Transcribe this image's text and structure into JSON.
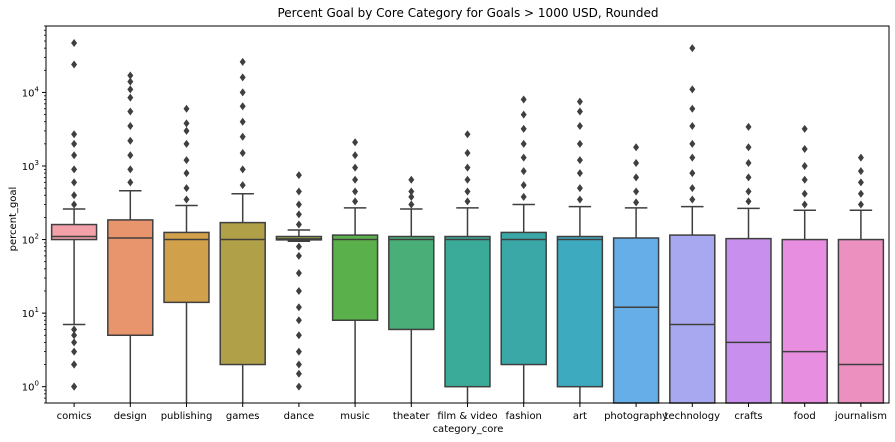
{
  "chart_data": {
    "type": "boxplot",
    "title": "Percent Goal by Core Category for Goals > 1000 USD, Rounded",
    "xlabel": "category_core",
    "ylabel": "percent_goal",
    "yscale": "log",
    "ylim": [
      0.6,
      80000
    ],
    "yticks": [
      {
        "value": 1,
        "base": "10",
        "exp": "0"
      },
      {
        "value": 10,
        "base": "10",
        "exp": "1"
      },
      {
        "value": 100,
        "base": "10",
        "exp": "2"
      },
      {
        "value": 1000,
        "base": "10",
        "exp": "3"
      },
      {
        "value": 10000,
        "base": "10",
        "exp": "4"
      }
    ],
    "grid": false,
    "series": [
      {
        "category": "comics",
        "color": "#f4a0a8",
        "q1": 100,
        "median": 110,
        "q3": 160,
        "whisker_low": 7,
        "whisker_high": 260,
        "outliers_low": [
          1,
          1,
          2,
          2,
          3,
          4,
          5,
          6
        ],
        "outliers_high": [
          300,
          400,
          600,
          900,
          1400,
          2000,
          2700,
          24000,
          47000
        ]
      },
      {
        "category": "design",
        "color": "#e8956e",
        "q1": 5,
        "median": 105,
        "q3": 185,
        "whisker_low": 0.6,
        "whisker_high": 460,
        "outliers_low": [],
        "outliers_high": [
          600,
          900,
          1400,
          2200,
          3500,
          5500,
          8500,
          11000,
          14000,
          17000
        ]
      },
      {
        "category": "publishing",
        "color": "#d0a04a",
        "q1": 14,
        "median": 100,
        "q3": 125,
        "whisker_low": 0.6,
        "whisker_high": 290,
        "outliers_low": [],
        "outliers_high": [
          350,
          500,
          800,
          1200,
          2000,
          3000,
          3800,
          6000
        ]
      },
      {
        "category": "games",
        "color": "#b0a048",
        "q1": 2,
        "median": 100,
        "q3": 170,
        "whisker_low": 0.6,
        "whisker_high": 420,
        "outliers_low": [],
        "outliers_high": [
          550,
          900,
          1500,
          2500,
          4000,
          6500,
          10000,
          16000,
          26000
        ]
      },
      {
        "category": "dance",
        "color": "#95a84a",
        "q1": 99,
        "median": 102,
        "q3": 110,
        "whisker_low": 95,
        "whisker_high": 135,
        "outliers_low": [
          1,
          1.5,
          2,
          3,
          5,
          8,
          12,
          20,
          35,
          60,
          80
        ],
        "outliers_high": [
          160,
          220,
          300,
          450,
          750
        ]
      },
      {
        "category": "music",
        "color": "#5ab04a",
        "q1": 8,
        "median": 100,
        "q3": 115,
        "whisker_low": 0.6,
        "whisker_high": 270,
        "outliers_low": [],
        "outliers_high": [
          330,
          450,
          650,
          950,
          1400,
          2100
        ]
      },
      {
        "category": "theater",
        "color": "#4aae78",
        "q1": 6,
        "median": 100,
        "q3": 110,
        "whisker_low": 0.6,
        "whisker_high": 260,
        "outliers_low": [],
        "outliers_high": [
          300,
          380,
          450,
          650
        ]
      },
      {
        "category": "film & video",
        "color": "#3aab98",
        "q1": 1,
        "median": 100,
        "q3": 110,
        "whisker_low": 0.6,
        "whisker_high": 270,
        "outliers_low": [],
        "outliers_high": [
          330,
          450,
          650,
          950,
          1500,
          2700
        ]
      },
      {
        "category": "fashion",
        "color": "#3ba8a8",
        "q1": 2,
        "median": 100,
        "q3": 125,
        "whisker_low": 0.6,
        "whisker_high": 300,
        "outliers_low": [],
        "outliers_high": [
          380,
          550,
          850,
          1300,
          2000,
          3200,
          5000,
          8000
        ]
      },
      {
        "category": "art",
        "color": "#3eaac0",
        "q1": 1,
        "median": 100,
        "q3": 110,
        "whisker_low": 0.6,
        "whisker_high": 280,
        "outliers_low": [],
        "outliers_high": [
          350,
          500,
          800,
          1200,
          2000,
          3500,
          5500,
          7500
        ]
      },
      {
        "category": "photography",
        "color": "#66aee8",
        "q1": 0.6,
        "median": 12,
        "q3": 105,
        "whisker_low": 0.6,
        "whisker_high": 270,
        "outliers_low": [],
        "outliers_high": [
          320,
          450,
          700,
          1100,
          1800
        ]
      },
      {
        "category": "technology",
        "color": "#a8a8f0",
        "q1": 0.6,
        "median": 7,
        "q3": 115,
        "whisker_low": 0.6,
        "whisker_high": 280,
        "outliers_low": [],
        "outliers_high": [
          350,
          500,
          800,
          1300,
          2000,
          3500,
          6000,
          11000,
          40000
        ]
      },
      {
        "category": "crafts",
        "color": "#c890ec",
        "q1": 0.6,
        "median": 4,
        "q3": 103,
        "whisker_low": 0.6,
        "whisker_high": 265,
        "outliers_low": [],
        "outliers_high": [
          330,
          450,
          700,
          1100,
          1800,
          3400
        ]
      },
      {
        "category": "food",
        "color": "#e88ee0",
        "q1": 0.6,
        "median": 3,
        "q3": 100,
        "whisker_low": 0.6,
        "whisker_high": 250,
        "outliers_low": [],
        "outliers_high": [
          300,
          420,
          650,
          1000,
          1700,
          3200
        ]
      },
      {
        "category": "journalism",
        "color": "#ec90c0",
        "q1": 0.6,
        "median": 2,
        "q3": 100,
        "whisker_low": 0.6,
        "whisker_high": 250,
        "outliers_low": [],
        "outliers_high": [
          300,
          420,
          600,
          850,
          1300
        ]
      }
    ]
  }
}
